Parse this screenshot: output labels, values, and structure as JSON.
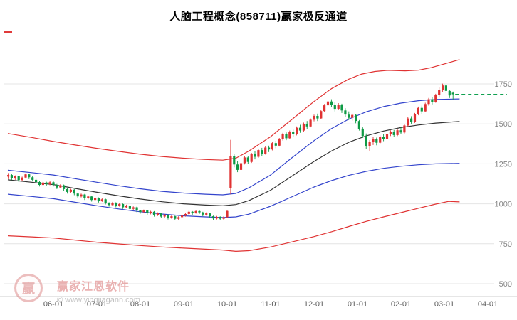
{
  "title": "人脑工程概念(858711)赢家极反通道",
  "watermark": {
    "brand": "赢家江恩软件",
    "url": "© www.yingjiagann.com",
    "logo_char": "赢"
  },
  "colors": {
    "grid": "#e4e4e4",
    "axis": "#cccccc",
    "y_label": "#858585",
    "x_label": "#5a5a5a",
    "up": "#e03232",
    "down": "#0e9a45",
    "line_red": "#e03333",
    "line_blue": "#3344cc",
    "line_black": "#333333",
    "dashed_green": "#10a050"
  },
  "chart_data": {
    "type": "candlestick",
    "title": "人脑工程概念(858711)赢家极反通道",
    "ylabel": "",
    "xlabel": "",
    "ylim": [
      500,
      1950
    ],
    "grid": "horizontal",
    "y_ticks": [
      1750,
      1500,
      1250,
      1000,
      750,
      500
    ],
    "x_tick_labels": [
      "06-01",
      "07-01",
      "08-01",
      "09-01",
      "10-01",
      "11-01",
      "12-01",
      "01-01",
      "02-01",
      "03-01",
      "04-01"
    ],
    "x_unit": "months since 06-01 (fractional)",
    "candles": [
      [
        -1.04,
        1170,
        1192,
        1155,
        1180
      ],
      [
        -0.96,
        1180,
        1185,
        1148,
        1158
      ],
      [
        -0.88,
        1158,
        1178,
        1150,
        1172
      ],
      [
        -0.8,
        1172,
        1176,
        1138,
        1148
      ],
      [
        -0.72,
        1148,
        1170,
        1142,
        1164
      ],
      [
        -0.64,
        1164,
        1190,
        1158,
        1184
      ],
      [
        -0.56,
        1184,
        1188,
        1155,
        1166
      ],
      [
        -0.48,
        1166,
        1172,
        1140,
        1150
      ],
      [
        -0.4,
        1150,
        1158,
        1126,
        1136
      ],
      [
        -0.32,
        1136,
        1142,
        1108,
        1118
      ],
      [
        -0.24,
        1118,
        1140,
        1112,
        1133
      ],
      [
        -0.16,
        1133,
        1138,
        1112,
        1122
      ],
      [
        -0.08,
        1122,
        1142,
        1116,
        1135
      ],
      [
        0.0,
        1135,
        1140,
        1108,
        1118
      ],
      [
        0.08,
        1118,
        1124,
        1092,
        1102
      ],
      [
        0.16,
        1102,
        1122,
        1096,
        1116
      ],
      [
        0.24,
        1116,
        1120,
        1082,
        1092
      ],
      [
        0.32,
        1092,
        1098,
        1064,
        1074
      ],
      [
        0.4,
        1074,
        1094,
        1068,
        1088
      ],
      [
        0.48,
        1088,
        1092,
        1054,
        1064
      ],
      [
        0.56,
        1064,
        1070,
        1036,
        1046
      ],
      [
        0.64,
        1046,
        1064,
        1040,
        1058
      ],
      [
        0.72,
        1058,
        1062,
        1024,
        1034
      ],
      [
        0.8,
        1034,
        1052,
        1028,
        1046
      ],
      [
        0.88,
        1046,
        1050,
        1014,
        1024
      ],
      [
        0.96,
        1024,
        1042,
        1018,
        1036
      ],
      [
        1.04,
        1036,
        1040,
        1008,
        1018
      ],
      [
        1.12,
        1018,
        1034,
        1012,
        1028
      ],
      [
        1.2,
        1028,
        1032,
        996,
        1005
      ],
      [
        1.28,
        1005,
        1010,
        982,
        992
      ],
      [
        1.36,
        992,
        1012,
        986,
        1006
      ],
      [
        1.44,
        1006,
        1010,
        978,
        988
      ],
      [
        1.52,
        988,
        1004,
        982,
        998
      ],
      [
        1.6,
        998,
        1002,
        968,
        978
      ],
      [
        1.68,
        978,
        994,
        972,
        988
      ],
      [
        1.76,
        988,
        992,
        958,
        968
      ],
      [
        1.84,
        968,
        984,
        962,
        978
      ],
      [
        1.92,
        978,
        982,
        948,
        958
      ],
      [
        2.0,
        958,
        962,
        938,
        948
      ],
      [
        2.08,
        948,
        964,
        942,
        958
      ],
      [
        2.16,
        958,
        962,
        930,
        940
      ],
      [
        2.24,
        940,
        956,
        934,
        950
      ],
      [
        2.32,
        950,
        954,
        920,
        930
      ],
      [
        2.4,
        930,
        946,
        924,
        940
      ],
      [
        2.48,
        940,
        944,
        910,
        920
      ],
      [
        2.56,
        920,
        936,
        914,
        930
      ],
      [
        2.64,
        930,
        934,
        902,
        912
      ],
      [
        2.72,
        912,
        928,
        906,
        922
      ],
      [
        2.8,
        922,
        926,
        896,
        906
      ],
      [
        2.88,
        906,
        922,
        900,
        916
      ],
      [
        2.96,
        916,
        932,
        910,
        926
      ],
      [
        3.04,
        926,
        942,
        920,
        936
      ],
      [
        3.12,
        936,
        956,
        930,
        950
      ],
      [
        3.2,
        950,
        954,
        932,
        942
      ],
      [
        3.28,
        942,
        960,
        938,
        954
      ],
      [
        3.36,
        954,
        958,
        936,
        946
      ],
      [
        3.44,
        946,
        950,
        922,
        932
      ],
      [
        3.52,
        932,
        946,
        926,
        940
      ],
      [
        3.6,
        940,
        944,
        912,
        922
      ],
      [
        3.68,
        922,
        926,
        898,
        908
      ],
      [
        3.76,
        908,
        924,
        902,
        918
      ],
      [
        3.84,
        918,
        922,
        896,
        906
      ],
      [
        3.92,
        906,
        922,
        900,
        916
      ],
      [
        4.0,
        916,
        962,
        912,
        955
      ],
      [
        4.08,
        1100,
        1400,
        1060,
        1300
      ],
      [
        4.16,
        1300,
        1312,
        1228,
        1246
      ],
      [
        4.24,
        1246,
        1268,
        1198,
        1212
      ],
      [
        4.32,
        1212,
        1262,
        1204,
        1254
      ],
      [
        4.4,
        1254,
        1298,
        1246,
        1290
      ],
      [
        4.48,
        1290,
        1300,
        1248,
        1262
      ],
      [
        4.56,
        1262,
        1318,
        1256,
        1310
      ],
      [
        4.64,
        1310,
        1330,
        1278,
        1294
      ],
      [
        4.72,
        1294,
        1344,
        1288,
        1336
      ],
      [
        4.8,
        1336,
        1350,
        1298,
        1314
      ],
      [
        4.88,
        1314,
        1360,
        1308,
        1352
      ],
      [
        4.96,
        1352,
        1364,
        1324,
        1340
      ],
      [
        5.04,
        1340,
        1388,
        1334,
        1380
      ],
      [
        5.12,
        1380,
        1394,
        1348,
        1364
      ],
      [
        5.2,
        1364,
        1412,
        1358,
        1404
      ],
      [
        5.28,
        1404,
        1444,
        1396,
        1436
      ],
      [
        5.36,
        1436,
        1446,
        1398,
        1410
      ],
      [
        5.44,
        1410,
        1458,
        1404,
        1450
      ],
      [
        5.52,
        1450,
        1464,
        1418,
        1434
      ],
      [
        5.6,
        1434,
        1484,
        1428,
        1476
      ],
      [
        5.68,
        1476,
        1494,
        1444,
        1458
      ],
      [
        5.76,
        1458,
        1508,
        1452,
        1500
      ],
      [
        5.84,
        1500,
        1518,
        1468,
        1484
      ],
      [
        5.92,
        1484,
        1534,
        1478,
        1526
      ],
      [
        6.0,
        1526,
        1558,
        1516,
        1550
      ],
      [
        6.08,
        1550,
        1564,
        1518,
        1534
      ],
      [
        6.16,
        1534,
        1588,
        1528,
        1580
      ],
      [
        6.24,
        1580,
        1624,
        1574,
        1616
      ],
      [
        6.32,
        1616,
        1650,
        1600,
        1640
      ],
      [
        6.4,
        1640,
        1654,
        1604,
        1618
      ],
      [
        6.48,
        1618,
        1638,
        1578,
        1594
      ],
      [
        6.56,
        1594,
        1630,
        1586,
        1620
      ],
      [
        6.64,
        1620,
        1626,
        1568,
        1584
      ],
      [
        6.72,
        1584,
        1598,
        1544,
        1558
      ],
      [
        6.8,
        1558,
        1578,
        1524,
        1538
      ],
      [
        6.88,
        1538,
        1564,
        1520,
        1556
      ],
      [
        6.96,
        1556,
        1560,
        1504,
        1518
      ],
      [
        7.04,
        1518,
        1524,
        1458,
        1470
      ],
      [
        7.12,
        1470,
        1478,
        1412,
        1424
      ],
      [
        7.2,
        1424,
        1440,
        1344,
        1362
      ],
      [
        7.28,
        1362,
        1398,
        1330,
        1388
      ],
      [
        7.36,
        1388,
        1418,
        1368,
        1404
      ],
      [
        7.44,
        1404,
        1414,
        1366,
        1382
      ],
      [
        7.52,
        1382,
        1428,
        1376,
        1420
      ],
      [
        7.6,
        1420,
        1438,
        1392,
        1404
      ],
      [
        7.68,
        1404,
        1444,
        1398,
        1436
      ],
      [
        7.76,
        1436,
        1460,
        1424,
        1450
      ],
      [
        7.84,
        1450,
        1462,
        1418,
        1430
      ],
      [
        7.92,
        1430,
        1468,
        1424,
        1460
      ],
      [
        8.0,
        1460,
        1478,
        1436,
        1446
      ],
      [
        8.08,
        1446,
        1498,
        1440,
        1490
      ],
      [
        8.16,
        1490,
        1542,
        1484,
        1534
      ],
      [
        8.24,
        1534,
        1548,
        1498,
        1512
      ],
      [
        8.32,
        1512,
        1568,
        1506,
        1560
      ],
      [
        8.4,
        1560,
        1608,
        1554,
        1600
      ],
      [
        8.48,
        1600,
        1614,
        1562,
        1578
      ],
      [
        8.56,
        1578,
        1632,
        1572,
        1624
      ],
      [
        8.64,
        1624,
        1662,
        1614,
        1654
      ],
      [
        8.72,
        1654,
        1668,
        1622,
        1638
      ],
      [
        8.8,
        1638,
        1688,
        1632,
        1680
      ],
      [
        8.88,
        1680,
        1728,
        1670,
        1714
      ],
      [
        8.96,
        1714,
        1752,
        1700,
        1740
      ],
      [
        9.04,
        1740,
        1748,
        1692,
        1706
      ],
      [
        9.12,
        1706,
        1714,
        1662,
        1678
      ],
      [
        9.2,
        1695,
        1702,
        1652,
        1685
      ]
    ],
    "lines": [
      {
        "name": "upper-rail-red",
        "color": "#e03333",
        "points": [
          [
            -1.05,
            1440
          ],
          [
            -0.5,
            1415
          ],
          [
            0,
            1390
          ],
          [
            0.5,
            1368
          ],
          [
            1,
            1347
          ],
          [
            1.5,
            1328
          ],
          [
            2,
            1310
          ],
          [
            2.5,
            1296
          ],
          [
            3,
            1285
          ],
          [
            3.5,
            1277
          ],
          [
            3.9,
            1273
          ],
          [
            4.2,
            1285
          ],
          [
            4.5,
            1330
          ],
          [
            5,
            1420
          ],
          [
            5.5,
            1530
          ],
          [
            6,
            1640
          ],
          [
            6.4,
            1720
          ],
          [
            6.8,
            1780
          ],
          [
            7.1,
            1812
          ],
          [
            7.4,
            1828
          ],
          [
            7.7,
            1835
          ],
          [
            8.1,
            1832
          ],
          [
            8.4,
            1836
          ],
          [
            8.7,
            1852
          ],
          [
            9,
            1875
          ],
          [
            9.35,
            1902
          ]
        ]
      },
      {
        "name": "upper-mid-blue",
        "color": "#3344cc",
        "points": [
          [
            -1.05,
            1210
          ],
          [
            -0.5,
            1195
          ],
          [
            0,
            1180
          ],
          [
            0.5,
            1157
          ],
          [
            1,
            1135
          ],
          [
            1.5,
            1113
          ],
          [
            2,
            1094
          ],
          [
            2.5,
            1078
          ],
          [
            3,
            1067
          ],
          [
            3.5,
            1060
          ],
          [
            3.9,
            1056
          ],
          [
            4.2,
            1065
          ],
          [
            4.5,
            1100
          ],
          [
            5,
            1180
          ],
          [
            5.5,
            1290
          ],
          [
            6,
            1395
          ],
          [
            6.4,
            1470
          ],
          [
            6.8,
            1530
          ],
          [
            7.2,
            1575
          ],
          [
            7.6,
            1608
          ],
          [
            8,
            1630
          ],
          [
            8.4,
            1645
          ],
          [
            8.8,
            1653
          ],
          [
            9.35,
            1656
          ]
        ]
      },
      {
        "name": "middle-black",
        "color": "#333333",
        "points": [
          [
            -1.05,
            1150
          ],
          [
            -0.5,
            1135
          ],
          [
            0,
            1120
          ],
          [
            0.5,
            1096
          ],
          [
            1,
            1072
          ],
          [
            1.5,
            1050
          ],
          [
            2,
            1030
          ],
          [
            2.5,
            1013
          ],
          [
            3,
            1000
          ],
          [
            3.5,
            992
          ],
          [
            3.9,
            988
          ],
          [
            4.2,
            995
          ],
          [
            4.5,
            1020
          ],
          [
            5,
            1085
          ],
          [
            5.5,
            1175
          ],
          [
            6,
            1265
          ],
          [
            6.4,
            1330
          ],
          [
            6.8,
            1385
          ],
          [
            7.2,
            1425
          ],
          [
            7.6,
            1455
          ],
          [
            8,
            1477
          ],
          [
            8.4,
            1493
          ],
          [
            8.8,
            1505
          ],
          [
            9.35,
            1515
          ]
        ]
      },
      {
        "name": "lower-mid-blue",
        "color": "#3344cc",
        "points": [
          [
            -1.05,
            1060
          ],
          [
            -0.5,
            1046
          ],
          [
            0,
            1032
          ],
          [
            0.5,
            1010
          ],
          [
            1,
            988
          ],
          [
            1.5,
            968
          ],
          [
            2,
            950
          ],
          [
            2.5,
            936
          ],
          [
            3,
            925
          ],
          [
            3.5,
            918
          ],
          [
            3.9,
            914
          ],
          [
            4.2,
            918
          ],
          [
            4.5,
            935
          ],
          [
            5,
            985
          ],
          [
            5.5,
            1045
          ],
          [
            6,
            1105
          ],
          [
            6.4,
            1145
          ],
          [
            6.8,
            1178
          ],
          [
            7.2,
            1203
          ],
          [
            7.6,
            1222
          ],
          [
            8,
            1235
          ],
          [
            8.4,
            1244
          ],
          [
            8.8,
            1250
          ],
          [
            9.35,
            1253
          ]
        ]
      },
      {
        "name": "lower-rail-red",
        "color": "#e03333",
        "points": [
          [
            -1.05,
            800
          ],
          [
            -0.5,
            793
          ],
          [
            0,
            786
          ],
          [
            0.5,
            773
          ],
          [
            1,
            760
          ],
          [
            1.5,
            749
          ],
          [
            2,
            739
          ],
          [
            2.5,
            730
          ],
          [
            3,
            723
          ],
          [
            3.5,
            716
          ],
          [
            3.9,
            711
          ],
          [
            4.2,
            703
          ],
          [
            4.5,
            707
          ],
          [
            5,
            730
          ],
          [
            5.5,
            762
          ],
          [
            6,
            795
          ],
          [
            6.4,
            825
          ],
          [
            6.8,
            858
          ],
          [
            7.2,
            890
          ],
          [
            7.6,
            918
          ],
          [
            8,
            945
          ],
          [
            8.4,
            972
          ],
          [
            8.8,
            998
          ],
          [
            9.1,
            1015
          ],
          [
            9.35,
            1012
          ]
        ]
      }
    ],
    "last_close_line": {
      "value": 1685,
      "color": "#10a050",
      "style": "dashed"
    },
    "legend": "none"
  }
}
